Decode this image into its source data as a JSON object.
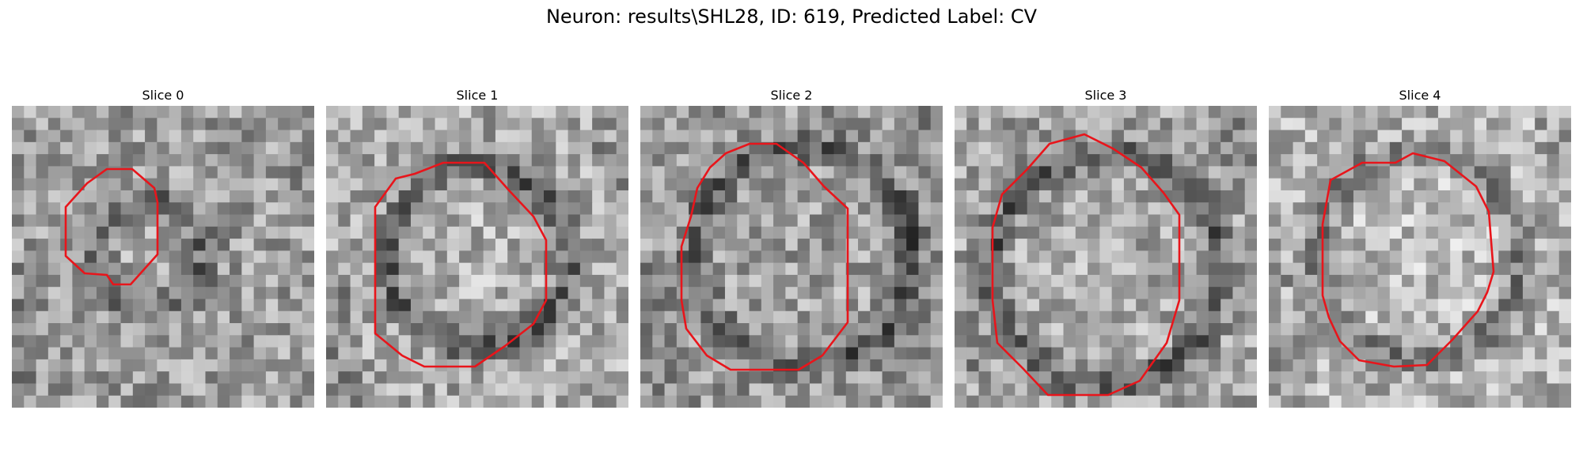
{
  "figure": {
    "title": "Neuron: results\\SHL28, ID: 619, Predicted Label: CV"
  },
  "panels": [
    {
      "title": "Slice 0"
    },
    {
      "title": "Slice 1"
    },
    {
      "title": "Slice 2"
    },
    {
      "title": "Slice 3"
    },
    {
      "title": "Slice 4"
    }
  ],
  "colors": {
    "contour": "#e8151b",
    "background": "#ffffff"
  }
}
